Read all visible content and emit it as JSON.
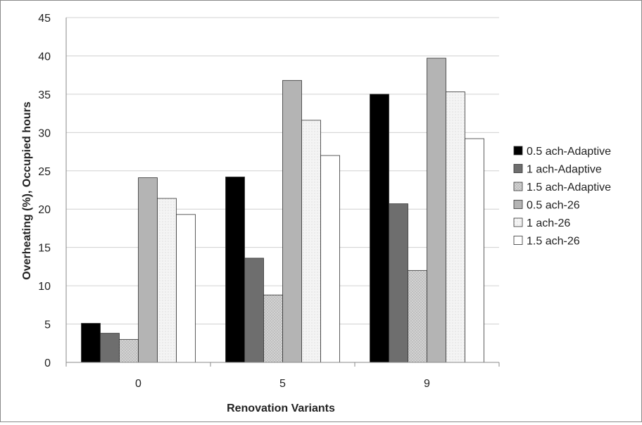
{
  "chart_data": {
    "type": "bar",
    "title": "",
    "xlabel": "Renovation Variants",
    "ylabel": "Overheating (%), Occupied hours",
    "ylim": [
      0,
      45
    ],
    "ytick_step": 5,
    "categories": [
      "0",
      "5",
      "9"
    ],
    "grid": true,
    "legend_position": "right",
    "series": [
      {
        "name": "0.5 ach-Adaptive",
        "values": [
          5.1,
          24.2,
          35.0
        ],
        "color": "#000000",
        "pattern": "solid"
      },
      {
        "name": "1 ach-Adaptive",
        "values": [
          3.8,
          13.6,
          20.7
        ],
        "color": "#6e6e6e",
        "pattern": "solid"
      },
      {
        "name": "1.5 ach-Adaptive",
        "values": [
          3.0,
          8.8,
          12.0
        ],
        "color": "#c8c8c8",
        "pattern": "dotted"
      },
      {
        "name": "0.5 ach-26",
        "values": [
          24.1,
          36.8,
          39.7
        ],
        "color": "#b4b4b4",
        "pattern": "solid"
      },
      {
        "name": "1 ach-26",
        "values": [
          21.4,
          31.6,
          35.3
        ],
        "color": "#f0f0f0",
        "pattern": "dotted"
      },
      {
        "name": "1.5 ach-26",
        "values": [
          19.3,
          27.0,
          29.2
        ],
        "color": "#ffffff",
        "pattern": "solid"
      }
    ]
  }
}
